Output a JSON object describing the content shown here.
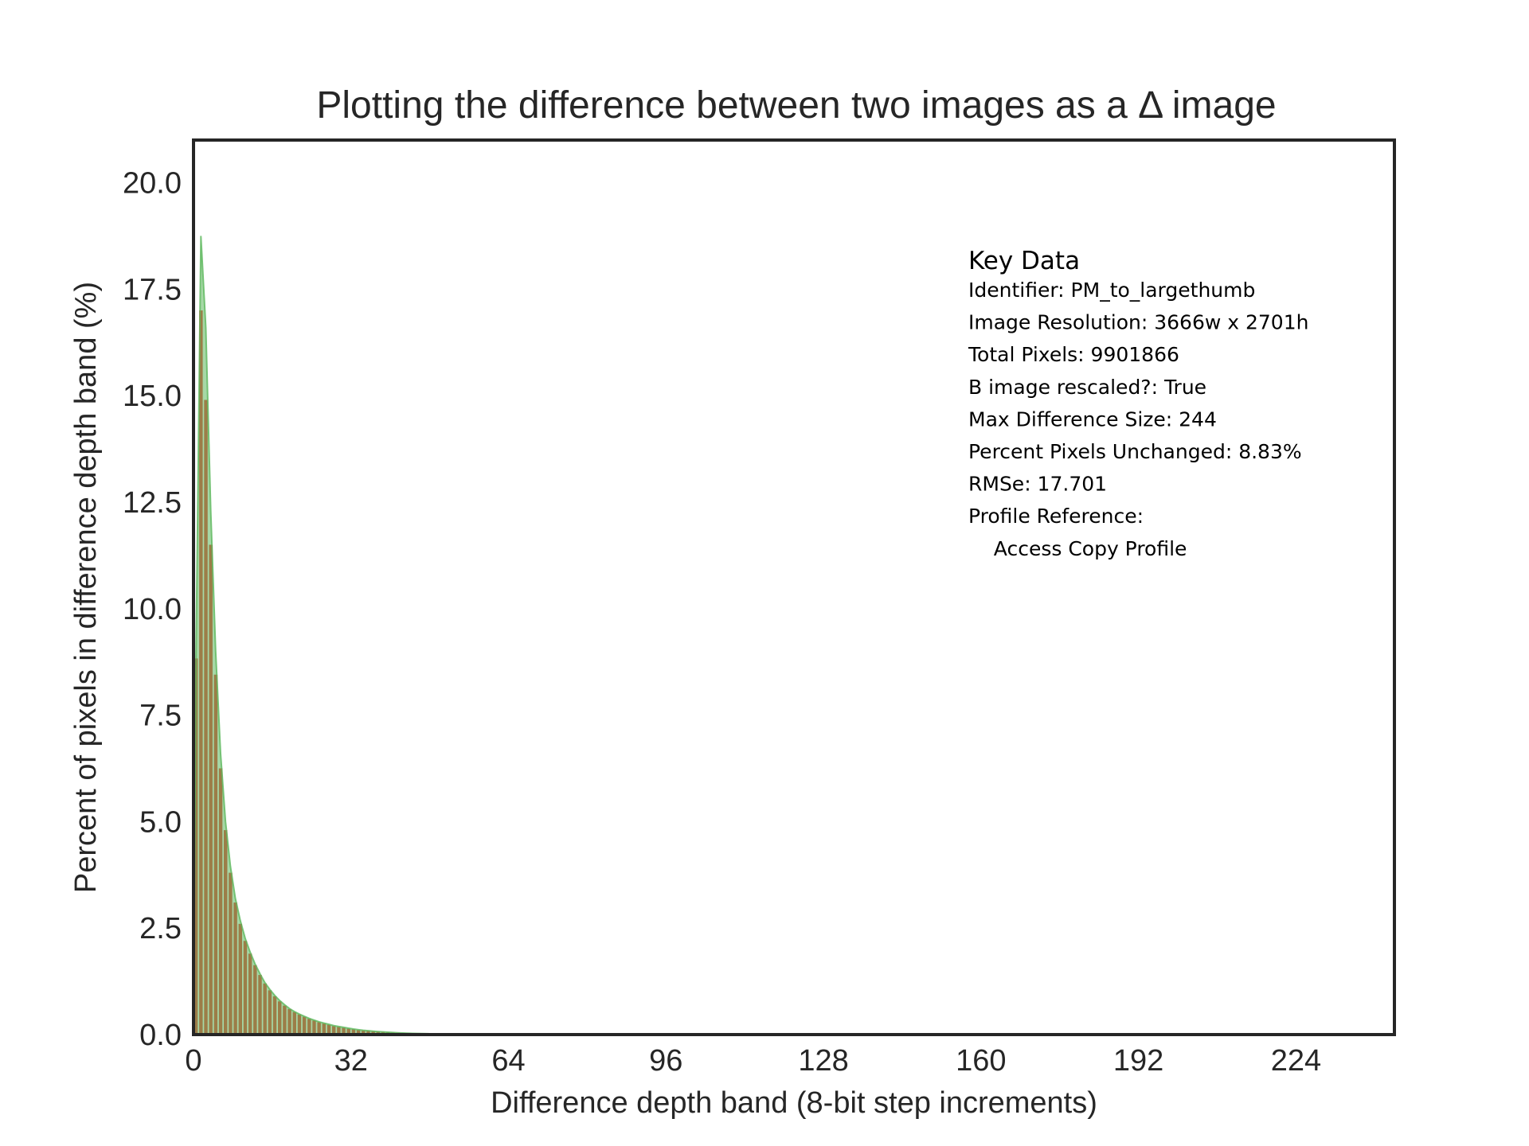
{
  "chart_data": {
    "type": "bar",
    "title": "Plotting the difference between two images as a Δ image",
    "xlabel": "Difference depth band (8-bit step increments)",
    "ylabel": "Percent of pixels in difference depth band (%)",
    "xlim": [
      0,
      244
    ],
    "ylim": [
      0,
      21
    ],
    "xticks": [
      0,
      32,
      64,
      96,
      128,
      160,
      192,
      224
    ],
    "xtick_labels": [
      "0",
      "32",
      "64",
      "96",
      "128",
      "160",
      "192",
      "224"
    ],
    "yticks": [
      0,
      2.5,
      5,
      7.5,
      10,
      12.5,
      15,
      17.5,
      20
    ],
    "ytick_labels": [
      "0.0",
      "2.5",
      "5.0",
      "7.5",
      "10.0",
      "12.5",
      "15.0",
      "17.5",
      "20.0"
    ],
    "grid": false,
    "series": [
      {
        "kind": "bars",
        "color": "#e8372f",
        "x": [
          0,
          1,
          2,
          3,
          4,
          5,
          6,
          7,
          8,
          9,
          10,
          11,
          12,
          13,
          14,
          15,
          16,
          17,
          18,
          19,
          20,
          21,
          22,
          23,
          24,
          25,
          26,
          27,
          28,
          29,
          30,
          31,
          32,
          33,
          34,
          35,
          36,
          37,
          38,
          39,
          40,
          41,
          42,
          43,
          44,
          45,
          46,
          47,
          48,
          49,
          50,
          51,
          52,
          53,
          54,
          55
        ],
        "values": [
          8.83,
          17.0,
          14.9,
          11.5,
          8.45,
          6.25,
          4.8,
          3.8,
          3.1,
          2.6,
          2.2,
          1.9,
          1.63,
          1.4,
          1.2,
          1.04,
          0.9,
          0.78,
          0.68,
          0.6,
          0.53,
          0.47,
          0.42,
          0.37,
          0.33,
          0.29,
          0.26,
          0.23,
          0.2,
          0.18,
          0.16,
          0.14,
          0.125,
          0.11,
          0.1,
          0.09,
          0.08,
          0.07,
          0.062,
          0.055,
          0.048,
          0.042,
          0.037,
          0.033,
          0.029,
          0.026,
          0.023,
          0.02,
          0.017,
          0.015,
          0.013,
          0.011,
          0.009,
          0.007,
          0.005,
          0.004
        ]
      },
      {
        "kind": "area",
        "color": "#5cb85c",
        "x": [
          0,
          1,
          2,
          3,
          4,
          5,
          6,
          7,
          8,
          9,
          10,
          11,
          12,
          13,
          14,
          15,
          16,
          17,
          18,
          19,
          20,
          21,
          22,
          23,
          24,
          25,
          26,
          27,
          28,
          29,
          30,
          31,
          32,
          33,
          34,
          35,
          36,
          37,
          38,
          39,
          40,
          41,
          42,
          43,
          44,
          45,
          46,
          47,
          48,
          49,
          50,
          51,
          52,
          53,
          54,
          55
        ],
        "values": [
          8.83,
          18.75,
          16.6,
          12.3,
          9.0,
          6.6,
          5.0,
          3.95,
          3.2,
          2.68,
          2.26,
          1.94,
          1.66,
          1.43,
          1.22,
          1.06,
          0.92,
          0.8,
          0.7,
          0.61,
          0.54,
          0.48,
          0.43,
          0.38,
          0.34,
          0.3,
          0.27,
          0.24,
          0.21,
          0.19,
          0.17,
          0.15,
          0.13,
          0.115,
          0.1,
          0.09,
          0.08,
          0.07,
          0.062,
          0.055,
          0.048,
          0.042,
          0.037,
          0.033,
          0.029,
          0.026,
          0.023,
          0.02,
          0.017,
          0.015,
          0.013,
          0.011,
          0.009,
          0.007,
          0.005,
          0.004
        ]
      }
    ],
    "key_box": {
      "title": "Key Data",
      "lines": [
        "Identifier: PM_to_largethumb",
        "Image Resolution: 3666w x 2701h",
        "Total Pixels: 9901866",
        "B image rescaled?: True",
        "Max Difference Size: 244",
        "Percent Pixels Unchanged: 8.83%",
        "RMSe: 17.701",
        "Profile Reference:",
        "  Access Copy Profile"
      ]
    }
  }
}
